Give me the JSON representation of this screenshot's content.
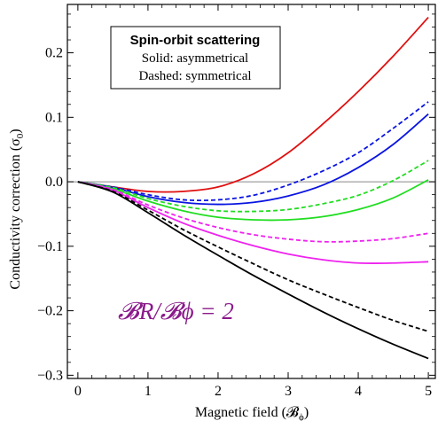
{
  "chart_data": {
    "type": "line",
    "xlabel": "Magnetic field (𝓑",
    "xlabel_sub": "ϕ",
    "xlabel_end": ")",
    "ylabel": "Conductivity correction (σ",
    "ylabel_sub": "0",
    "ylabel_end": ")",
    "xlim": [
      -0.15,
      5.1
    ],
    "ylim": [
      -0.305,
      0.275
    ],
    "xticks": [
      0,
      1,
      2,
      3,
      4,
      5
    ],
    "xtick_labels": [
      "0",
      "1",
      "2",
      "3",
      "4",
      "5"
    ],
    "yticks": [
      -0.3,
      -0.2,
      -0.1,
      0.0,
      0.1,
      0.2
    ],
    "ytick_labels": [
      "−0.3",
      "−0.2",
      "−0.1",
      "0.0",
      "0.1",
      "0.2"
    ],
    "legend": {
      "title": "Spin-orbit scattering",
      "line1": "Solid: asymmetrical",
      "line2": "Dashed: symmetrical"
    },
    "annotation": {
      "text": "𝓑R/𝓑ϕ = 2",
      "color": "#8B1A8B"
    },
    "series": [
      {
        "color": "#e01010",
        "style": "solid",
        "x": [
          0,
          0.5,
          1.0,
          1.5,
          2.0,
          2.5,
          3.0,
          3.5,
          4.0,
          4.5,
          5.0
        ],
        "y": [
          0,
          -0.008,
          -0.015,
          -0.015,
          -0.008,
          0.012,
          0.045,
          0.09,
          0.14,
          0.195,
          0.255
        ]
      },
      {
        "color": "#0a14e0",
        "style": "dashed",
        "x": [
          0,
          0.5,
          1.0,
          1.5,
          2.0,
          2.5,
          3.0,
          3.5,
          4.0,
          4.5,
          5.0
        ],
        "y": [
          0,
          -0.008,
          -0.02,
          -0.028,
          -0.028,
          -0.021,
          -0.005,
          0.017,
          0.045,
          0.083,
          0.124
        ]
      },
      {
        "color": "#0a14e0",
        "style": "solid",
        "x": [
          0,
          0.5,
          1.0,
          1.5,
          2.0,
          2.5,
          3.0,
          3.5,
          4.0,
          4.5,
          5.0
        ],
        "y": [
          0,
          -0.009,
          -0.023,
          -0.032,
          -0.035,
          -0.032,
          -0.022,
          -0.005,
          0.022,
          0.058,
          0.105
        ]
      },
      {
        "color": "#22dd22",
        "style": "dashed",
        "x": [
          0,
          0.5,
          1.0,
          1.5,
          2.0,
          2.5,
          3.0,
          3.5,
          4.0,
          4.5,
          5.0
        ],
        "y": [
          0,
          -0.009,
          -0.026,
          -0.038,
          -0.045,
          -0.046,
          -0.043,
          -0.034,
          -0.021,
          0.002,
          0.033
        ]
      },
      {
        "color": "#22dd22",
        "style": "solid",
        "x": [
          0,
          0.5,
          1.0,
          1.5,
          2.0,
          2.5,
          3.0,
          3.5,
          4.0,
          4.5,
          5.0
        ],
        "y": [
          0,
          -0.011,
          -0.03,
          -0.045,
          -0.055,
          -0.059,
          -0.059,
          -0.054,
          -0.043,
          -0.025,
          0.003
        ]
      },
      {
        "color": "#ee22ee",
        "style": "dashed",
        "x": [
          0,
          0.5,
          1.0,
          1.5,
          2.0,
          2.5,
          3.0,
          3.5,
          4.0,
          4.5,
          5.0
        ],
        "y": [
          0,
          -0.012,
          -0.036,
          -0.056,
          -0.071,
          -0.082,
          -0.089,
          -0.093,
          -0.092,
          -0.088,
          -0.08
        ]
      },
      {
        "color": "#ee22ee",
        "style": "solid",
        "x": [
          0,
          0.5,
          1.0,
          1.5,
          2.0,
          2.5,
          3.0,
          3.5,
          4.0,
          4.5,
          5.0
        ],
        "y": [
          0,
          -0.013,
          -0.04,
          -0.064,
          -0.083,
          -0.099,
          -0.112,
          -0.121,
          -0.126,
          -0.126,
          -0.124
        ]
      },
      {
        "color": "#000000",
        "style": "dashed",
        "x": [
          0,
          0.5,
          1.0,
          1.5,
          2.0,
          2.5,
          3.0,
          3.5,
          4.0,
          4.5,
          5.0
        ],
        "y": [
          0,
          -0.015,
          -0.044,
          -0.074,
          -0.101,
          -0.127,
          -0.152,
          -0.174,
          -0.195,
          -0.215,
          -0.232
        ]
      },
      {
        "color": "#000000",
        "style": "solid",
        "x": [
          0,
          0.5,
          1.0,
          1.5,
          2.0,
          2.5,
          3.0,
          3.5,
          4.0,
          4.5,
          5.0
        ],
        "y": [
          0,
          -0.016,
          -0.048,
          -0.082,
          -0.114,
          -0.145,
          -0.174,
          -0.202,
          -0.228,
          -0.252,
          -0.274
        ]
      }
    ]
  }
}
